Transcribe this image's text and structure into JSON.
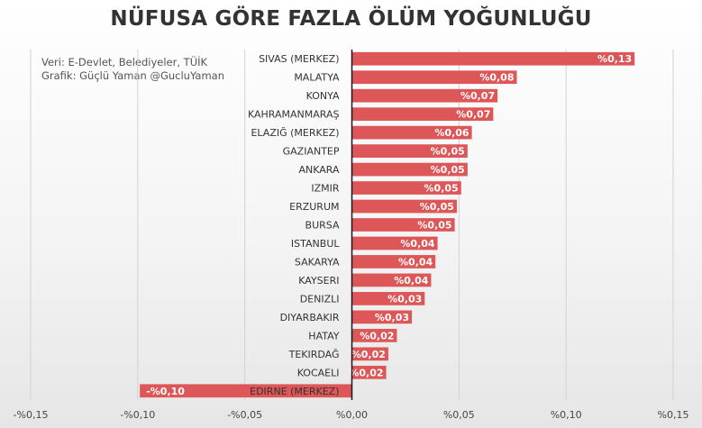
{
  "title": "NÜFUSA GÖRE FAZLA ÖLÜM YOĞUNLUĞU",
  "credits": {
    "source": "Veri: E-Devlet, Belediyeler, TÜİK",
    "author": "Grafik: Güçlü Yaman @GucluYaman"
  },
  "chart_data": {
    "type": "bar",
    "orientation": "horizontal",
    "title": "NÜFUSA GÖRE FAZLA ÖLÜM YOĞUNLUĞU",
    "xlim": [
      -0.15,
      0.15
    ],
    "x_ticks": [
      -0.15,
      -0.1,
      -0.05,
      0.0,
      0.05,
      0.1,
      0.15
    ],
    "x_tick_labels": [
      "-%0,15",
      "-%0,10",
      "-%0,05",
      "%0,00",
      "%0,05",
      "%0,10",
      "%0,15"
    ],
    "grid": "vertical",
    "bar_color": "#dd5658",
    "categories": [
      "SIVAS (MERKEZ)",
      "MALATYA",
      "KONYA",
      "KAHRAMANMARAŞ",
      "ELAZIĞ (MERKEZ)",
      "GAZIANTEP",
      "ANKARA",
      "IZMIR",
      "ERZURUM",
      "BURSA",
      "ISTANBUL",
      "SAKARYA",
      "KAYSERI",
      "DENIZLI",
      "DIYARBAKIR",
      "HATAY",
      "TEKIRDAĞ",
      "KOCAELI",
      "EDIRNE (MERKEZ)"
    ],
    "values": [
      0.132,
      0.077,
      0.068,
      0.066,
      0.056,
      0.054,
      0.054,
      0.051,
      0.049,
      0.048,
      0.04,
      0.039,
      0.037,
      0.034,
      0.028,
      0.021,
      0.017,
      0.016,
      -0.099
    ],
    "data_labels": [
      "%0,13",
      "%0,08",
      "%0,07",
      "%0,07",
      "%0,06",
      "%0,05",
      "%0,05",
      "%0,05",
      "%0,05",
      "%0,05",
      "%0,04",
      "%0,04",
      "%0,04",
      "%0,03",
      "%0,03",
      "%0,02",
      "%0,02",
      "%0,02",
      "-%0,10"
    ]
  }
}
